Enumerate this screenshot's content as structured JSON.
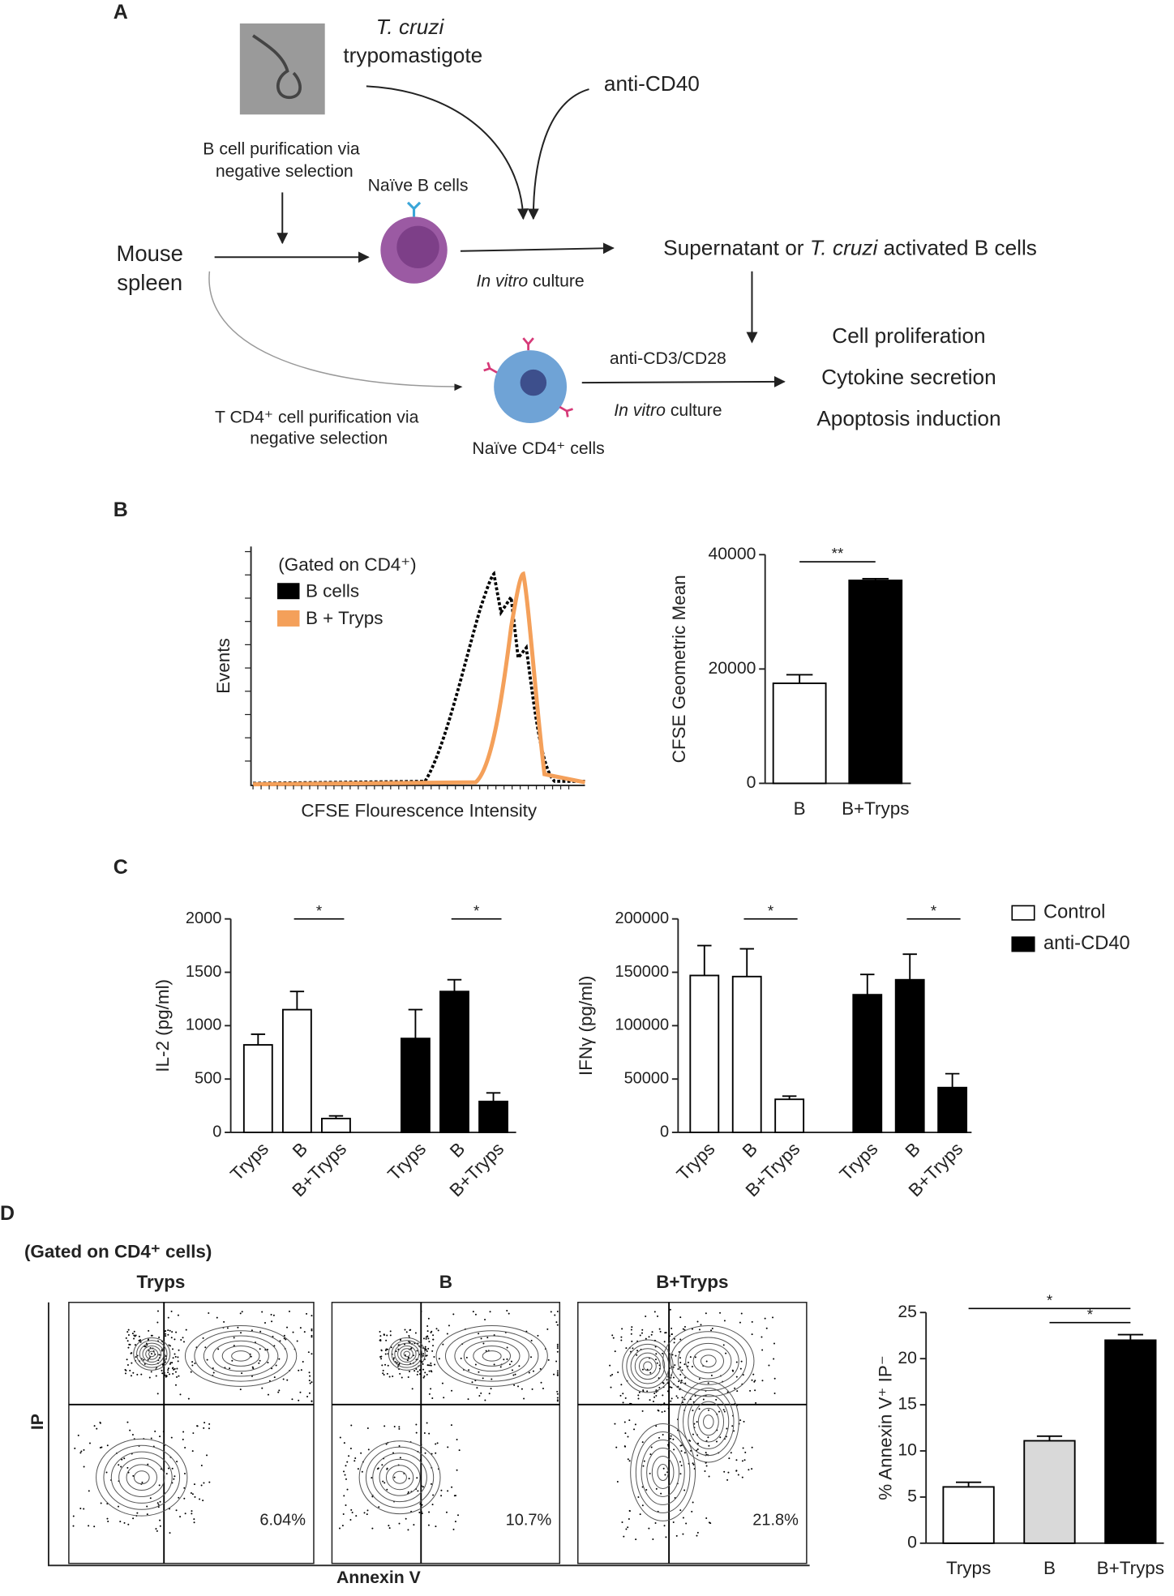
{
  "panel_labels": [
    "A",
    "B",
    "C",
    "D"
  ],
  "diagram": {
    "parasite_name": "T. cruzi",
    "parasite_stage": "trypomastigote",
    "stimulus": "anti-CD40",
    "b_purification": [
      "B cell purification via",
      "negative selection"
    ],
    "b_cells": "Naïve B cells",
    "source": [
      "Mouse",
      "spleen"
    ],
    "culture_1": [
      "In vitro",
      "culture"
    ],
    "product": [
      "Supernatant or ",
      "T. cruzi",
      " activated B cells"
    ],
    "t_stimulus": "anti-CD3/CD28",
    "culture_2": [
      "In vitro",
      "culture"
    ],
    "readouts": [
      "Cell proliferation",
      "Cytokine secretion",
      "Apoptosis induction"
    ],
    "t_purification": [
      "T CD4⁺ cell purification via",
      "negative selection"
    ],
    "t_cells": "Naïve CD4⁺ cells"
  },
  "chart_data": [
    {
      "type": "histogram",
      "xlabel": "CFSE Flourescence Intensity",
      "ylabel": "Events",
      "legend_title": "(Gated on CD4⁺)",
      "series": [
        {
          "name": "B cells",
          "color": "#000000"
        },
        {
          "name": "B + Tryps",
          "color": "#f4a05a"
        }
      ]
    },
    {
      "type": "bar",
      "ylabel": "CFSE Geometric Mean",
      "categories": [
        "B",
        "B+Tryps"
      ],
      "series": [
        {
          "values": [
            17500,
            35500
          ],
          "errors": [
            1500,
            300
          ],
          "colors": [
            "#ffffff",
            "#000000"
          ]
        }
      ],
      "ylim": [
        0,
        40000
      ],
      "yticks": [
        0,
        20000,
        40000
      ],
      "significance": [
        {
          "text": "**",
          "between": [
            0,
            1
          ]
        }
      ]
    },
    {
      "type": "bar",
      "ylabel": "IL-2 (pg/ml)",
      "categories": [
        "Tryps",
        "B",
        "B+Tryps",
        "Tryps",
        "B",
        "B+Tryps"
      ],
      "series": [
        {
          "color": "#ffffff",
          "values": [
            820,
            1150,
            130,
            null,
            null,
            null
          ],
          "errors": [
            100,
            170,
            25,
            null,
            null,
            null
          ]
        },
        {
          "color": "#000000",
          "values": [
            null,
            null,
            null,
            880,
            1320,
            290
          ],
          "errors": [
            null,
            null,
            null,
            270,
            110,
            80
          ]
        }
      ],
      "ylim": [
        0,
        2000
      ],
      "yticks": [
        0,
        500,
        1000,
        1500,
        2000
      ],
      "significance": [
        {
          "text": "*",
          "between": [
            1,
            2
          ]
        },
        {
          "text": "*",
          "between": [
            4,
            5
          ]
        }
      ]
    },
    {
      "type": "bar",
      "ylabel": "IFNγ (pg/ml)",
      "categories": [
        "Tryps",
        "B",
        "B+Tryps",
        "Tryps",
        "B",
        "B+Tryps"
      ],
      "series": [
        {
          "name": "Control",
          "color": "#ffffff",
          "values": [
            147000,
            146000,
            31000,
            null,
            null,
            null
          ],
          "errors": [
            28000,
            26000,
            3000,
            null,
            null,
            null
          ]
        },
        {
          "name": "anti-CD40",
          "color": "#000000",
          "values": [
            null,
            null,
            null,
            129000,
            143000,
            42000
          ],
          "errors": [
            null,
            null,
            null,
            19000,
            24000,
            13000
          ]
        }
      ],
      "ylim": [
        0,
        200000
      ],
      "yticks": [
        0,
        50000,
        100000,
        150000,
        200000
      ],
      "significance": [
        {
          "text": "*",
          "between": [
            1,
            2
          ]
        },
        {
          "text": "*",
          "between": [
            4,
            5
          ]
        }
      ]
    },
    {
      "type": "contour",
      "gate": "(Gated on CD4⁺ cells)",
      "xlabel": "Annexin V",
      "ylabel": "IP",
      "panels": [
        {
          "title": "Tryps",
          "label": "6.04%"
        },
        {
          "title": "B",
          "label": "10.7%"
        },
        {
          "title": "B+Tryps",
          "label": "21.8%"
        }
      ]
    },
    {
      "type": "bar",
      "ylabel": "% Annexin V⁺ IP⁻",
      "categories": [
        "Tryps",
        "B",
        "B+Tryps"
      ],
      "series": [
        {
          "values": [
            6.1,
            11.1,
            22
          ],
          "errors": [
            0.5,
            0.5,
            0.6
          ],
          "colors": [
            "#ffffff",
            "#d9d9d9",
            "#000000"
          ]
        }
      ],
      "ylim": [
        0,
        25
      ],
      "yticks": [
        0,
        5,
        10,
        15,
        20,
        25
      ],
      "significance": [
        {
          "text": "*",
          "between": [
            0,
            2
          ]
        },
        {
          "text": "*",
          "between": [
            1,
            2
          ]
        }
      ]
    }
  ]
}
